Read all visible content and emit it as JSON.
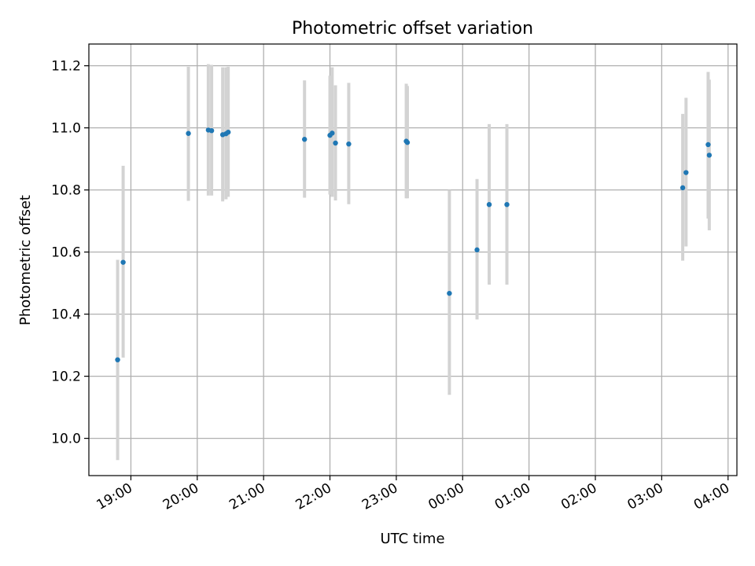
{
  "chart_data": {
    "type": "scatter",
    "title": "Photometric offset variation",
    "xlabel": "UTC time",
    "ylabel": "Photometric offset",
    "xlim": [
      "2000-01-01T18:22:00",
      "2000-01-02T04:08:00"
    ],
    "ylim": [
      9.88,
      11.27
    ],
    "grid": true,
    "x_ticks": [
      {
        "t": "2000-01-01T19:00:00",
        "label": "19:00"
      },
      {
        "t": "2000-01-01T20:00:00",
        "label": "20:00"
      },
      {
        "t": "2000-01-01T21:00:00",
        "label": "21:00"
      },
      {
        "t": "2000-01-01T22:00:00",
        "label": "22:00"
      },
      {
        "t": "2000-01-01T23:00:00",
        "label": "23:00"
      },
      {
        "t": "2000-01-02T00:00:00",
        "label": "00:00"
      },
      {
        "t": "2000-01-02T01:00:00",
        "label": "01:00"
      },
      {
        "t": "2000-01-02T02:00:00",
        "label": "02:00"
      },
      {
        "t": "2000-01-02T03:00:00",
        "label": "03:00"
      },
      {
        "t": "2000-01-02T04:00:00",
        "label": "04:00"
      }
    ],
    "y_ticks": [
      10.0,
      10.2,
      10.4,
      10.6,
      10.8,
      11.0,
      11.2
    ],
    "colors": {
      "point": "#1f77b4",
      "errorbar": "#d3d3d3",
      "grid": "#b0b0b0"
    },
    "points": [
      {
        "t": "2000-01-01T18:48:00",
        "y": 10.253,
        "lo": 9.93,
        "hi": 10.575
      },
      {
        "t": "2000-01-01T18:53:00",
        "y": 10.567,
        "lo": 10.26,
        "hi": 10.878
      },
      {
        "t": "2000-01-01T19:52:00",
        "y": 10.982,
        "lo": 10.765,
        "hi": 11.197
      },
      {
        "t": "2000-01-01T20:10:00",
        "y": 10.993,
        "lo": 10.782,
        "hi": 11.205
      },
      {
        "t": "2000-01-01T20:13:00",
        "y": 10.991,
        "lo": 10.782,
        "hi": 11.203
      },
      {
        "t": "2000-01-01T20:23:00",
        "y": 10.978,
        "lo": 10.763,
        "hi": 11.195
      },
      {
        "t": "2000-01-01T20:26:00",
        "y": 10.981,
        "lo": 10.77,
        "hi": 11.195
      },
      {
        "t": "2000-01-01T20:28:00",
        "y": 10.986,
        "lo": 10.778,
        "hi": 11.197
      },
      {
        "t": "2000-01-01T21:37:00",
        "y": 10.963,
        "lo": 10.775,
        "hi": 11.153
      },
      {
        "t": "2000-01-01T22:00:00",
        "y": 10.976,
        "lo": 10.785,
        "hi": 11.168
      },
      {
        "t": "2000-01-01T22:02:00",
        "y": 10.983,
        "lo": 10.778,
        "hi": 11.195
      },
      {
        "t": "2000-01-01T22:05:00",
        "y": 10.951,
        "lo": 10.766,
        "hi": 11.137
      },
      {
        "t": "2000-01-01T22:17:00",
        "y": 10.948,
        "lo": 10.754,
        "hi": 11.145
      },
      {
        "t": "2000-01-01T23:09:00",
        "y": 10.957,
        "lo": 10.773,
        "hi": 11.142
      },
      {
        "t": "2000-01-01T23:10:00",
        "y": 10.953,
        "lo": 10.773,
        "hi": 11.135
      },
      {
        "t": "2000-01-01T23:48:00",
        "y": 10.467,
        "lo": 10.14,
        "hi": 10.8
      },
      {
        "t": "2000-01-02T00:13:00",
        "y": 10.607,
        "lo": 10.383,
        "hi": 10.835
      },
      {
        "t": "2000-01-02T00:24:00",
        "y": 10.753,
        "lo": 10.495,
        "hi": 11.012
      },
      {
        "t": "2000-01-02T00:40:00",
        "y": 10.753,
        "lo": 10.495,
        "hi": 11.012
      },
      {
        "t": "2000-01-02T03:19:00",
        "y": 10.807,
        "lo": 10.572,
        "hi": 11.045
      },
      {
        "t": "2000-01-02T03:22:00",
        "y": 10.856,
        "lo": 10.618,
        "hi": 11.097
      },
      {
        "t": "2000-01-02T03:42:00",
        "y": 10.946,
        "lo": 10.708,
        "hi": 11.18
      },
      {
        "t": "2000-01-02T03:43:00",
        "y": 10.912,
        "lo": 10.67,
        "hi": 11.155
      }
    ]
  }
}
